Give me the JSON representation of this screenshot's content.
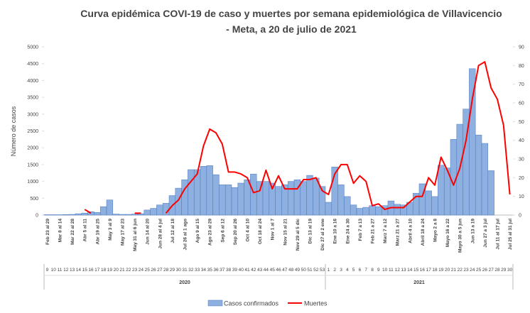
{
  "chart_data": {
    "type": "bar_line",
    "title": "Curva epidémica COVI-19 de caso y muertes por semana epidemiológica de Villavicencio",
    "subtitle": "- Meta, a 20 de julio de 2021",
    "y_axis_label": "Número de casos",
    "categories": [
      9,
      10,
      11,
      12,
      13,
      14,
      15,
      16,
      17,
      18,
      19,
      20,
      21,
      22,
      23,
      24,
      25,
      26,
      27,
      28,
      29,
      30,
      31,
      32,
      33,
      34,
      35,
      36,
      37,
      38,
      39,
      40,
      41,
      42,
      43,
      44,
      45,
      46,
      47,
      48,
      49,
      50,
      51,
      52,
      53,
      1,
      2,
      3,
      4,
      5,
      6,
      7,
      8,
      9,
      10,
      11,
      12,
      13,
      14,
      15,
      16,
      17,
      18,
      19,
      20,
      21,
      22,
      23,
      24,
      25,
      26,
      27,
      28,
      29,
      30
    ],
    "date_labels": [
      "Feb 23 al 29",
      null,
      "Mar 8 al 14",
      null,
      "Mar 22 al 28",
      null,
      "Abr 5 al 11",
      null,
      "Abr 19 al 25",
      null,
      "May 3 al 9",
      null,
      "May 17 al 23",
      null,
      "May 31 al 6 jun",
      null,
      "Jun 14 al 20",
      null,
      "Jun 28 al 4 jul",
      null,
      "Jul 12 al 18",
      null,
      "Jul 26 al 1 ago",
      null,
      "Ago 9 al 15",
      null,
      "Ago 23 al 29",
      null,
      "Sep 6 al 12",
      null,
      "Sep 20 al 26",
      null,
      "Oct 4 al 10",
      null,
      "Oct 18 al 24",
      null,
      "Nov 1 al 7",
      null,
      "Nov 15 al 21",
      null,
      "Nov 29 al 5 dic",
      null,
      "Dic 13 al 19",
      null,
      "Dic 27 al 2 ene",
      null,
      "Ene 10 a 16",
      null,
      "Ene 24 a 30",
      null,
      "Feb 7 a 13",
      null,
      "Feb 21 a 27",
      null,
      "Marz 7 a 12",
      null,
      "Marz 21 a 27",
      null,
      "Abril 4 a 10",
      null,
      "Abril 18 a 24",
      null,
      "Mayo 2 a 8",
      null,
      "Mayo 16 a 22",
      null,
      "Mayo 30 a 5 jun",
      null,
      "Jun 13 a 19",
      null,
      "Jun 27 a 3 jul",
      null,
      "Jul 11 al 17 jul",
      null,
      "Jul 25 al 31 jul"
    ],
    "years": [
      "2020",
      "2021"
    ],
    "series": [
      {
        "name": "Casos confirmados",
        "type": "bar",
        "color": "#8eb0e0",
        "edge": "#4a78c0",
        "values": [
          10,
          10,
          10,
          15,
          20,
          40,
          60,
          100,
          80,
          250,
          450,
          30,
          20,
          20,
          30,
          40,
          150,
          200,
          300,
          350,
          580,
          800,
          1050,
          1350,
          1350,
          1450,
          1470,
          1200,
          900,
          900,
          820,
          950,
          1050,
          1220,
          1000,
          1000,
          950,
          850,
          900,
          1000,
          1050,
          1000,
          1180,
          1100,
          850,
          380,
          1430,
          900,
          550,
          300,
          200,
          230,
          280,
          250,
          280,
          420,
          320,
          300,
          380,
          650,
          930,
          720,
          550,
          1480,
          1400,
          2250,
          2700,
          3150,
          4350,
          2380,
          2130,
          1320,
          null,
          null,
          null
        ]
      },
      {
        "name": "Muertes",
        "type": "line",
        "axis": "y2",
        "color": "#ff0000",
        "values": [
          null,
          null,
          null,
          null,
          null,
          null,
          3,
          1,
          null,
          null,
          null,
          null,
          null,
          null,
          1,
          1,
          null,
          null,
          null,
          1,
          5,
          8,
          14,
          18,
          22,
          37,
          46,
          44,
          38,
          23,
          23,
          22,
          20,
          12,
          13,
          24,
          14,
          21,
          14,
          14,
          14,
          19,
          19,
          20,
          13,
          11,
          22,
          27,
          27,
          17,
          21,
          18,
          5,
          6,
          3,
          4,
          4,
          4,
          7,
          10,
          10,
          20,
          16,
          31,
          24,
          16,
          25,
          40,
          62,
          80,
          82,
          68,
          62,
          48,
          11
        ]
      }
    ],
    "ylim": [
      0,
      5000
    ],
    "yticks": [
      0,
      500,
      1000,
      1500,
      2000,
      2500,
      3000,
      3500,
      4000,
      4500,
      5000
    ],
    "y2lim": [
      0,
      90
    ],
    "y2ticks": [
      0,
      10,
      20,
      30,
      40,
      50,
      60,
      70,
      80,
      90
    ],
    "legend": "bottom"
  }
}
